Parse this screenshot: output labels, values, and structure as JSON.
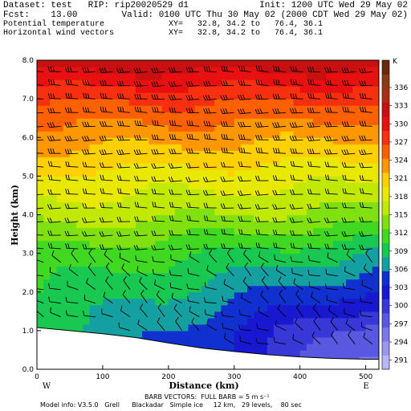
{
  "header": {
    "line1_left": "Dataset: test   RIP: rip20020529 d1",
    "line1_right": "Init: 1200 UTC Wed 29 May 02",
    "line2_left": "Fcst:    13.00",
    "line2_right": "Valid: 0100 UTC Thu 30 May 02 (2000 CDT Wed 29 May 02)",
    "line3_left": "Potential temperature",
    "line3_right": "XY=   32.8, 34.2 to   76.4, 36.1",
    "line4_left": "Horizontal wind vectors",
    "line4_right": "XY=   32.8, 34.2 to   76.4, 36.1"
  },
  "footer": {
    "barb_note": "BARB VECTORS:  FULL BARB = 5 m s⁻¹",
    "model_info": "Model info: V3.5.0   Grell      Blackadar   Simple ice     12 km,   29 levels,    80 sec"
  },
  "chart_data": {
    "type": "heatmap",
    "xlabel": "Distance (km)",
    "ylabel": "Height (km)",
    "xlim": [
      0,
      520
    ],
    "ylim": [
      0,
      8
    ],
    "x_ticks": [
      0,
      100,
      200,
      300,
      400,
      500
    ],
    "y_ticks": [
      "0.0",
      "1.0",
      "2.0",
      "3.0",
      "4.0",
      "5.0",
      "6.0",
      "7.0",
      "8.0"
    ],
    "x_end_labels": {
      "left": "W",
      "right": "E"
    },
    "colorbar": {
      "unit": "K",
      "labels": [
        291,
        294,
        297,
        300,
        303,
        306,
        309,
        312,
        315,
        318,
        321,
        324,
        327,
        330,
        333,
        336
      ],
      "colors": [
        "#b8b8f8",
        "#9898f0",
        "#7878e8",
        "#5858e0",
        "#3838d8",
        "#1818d0",
        "#1030d0",
        "#14a0a0",
        "#18c850",
        "#40d820",
        "#80e010",
        "#c0e800",
        "#e8e800",
        "#ffd000",
        "#ff9800",
        "#ff6000",
        "#f83010",
        "#e81010",
        "#c81010",
        "#a83010",
        "#8a3a14",
        "#6a2a0a"
      ],
      "isotherm_ticks": [
        291,
        294,
        297,
        300,
        303,
        306,
        309,
        312,
        315,
        318,
        321,
        324,
        327,
        330,
        333,
        336
      ]
    },
    "terrain_height_km": [
      [
        0,
        1.08
      ],
      [
        50,
        1.0
      ],
      [
        100,
        0.92
      ],
      [
        150,
        0.82
      ],
      [
        200,
        0.68
      ],
      [
        250,
        0.55
      ],
      [
        300,
        0.46
      ],
      [
        350,
        0.38
      ],
      [
        400,
        0.32
      ],
      [
        450,
        0.28
      ],
      [
        500,
        0.26
      ],
      [
        520,
        0.26
      ]
    ],
    "theta_profile": [
      {
        "z": 0.0,
        "west": 309,
        "east": 295
      },
      {
        "z": 1.0,
        "west": 309,
        "east": 297
      },
      {
        "z": 2.0,
        "west": 310,
        "east": 303
      },
      {
        "z": 3.0,
        "west": 312,
        "east": 308
      },
      {
        "z": 4.0,
        "west": 316,
        "east": 314
      },
      {
        "z": 5.0,
        "west": 319,
        "east": 318
      },
      {
        "z": 6.0,
        "west": 323,
        "east": 322
      },
      {
        "z": 7.0,
        "west": 327,
        "east": 327
      },
      {
        "z": 8.0,
        "west": 333,
        "east": 333
      }
    ]
  }
}
